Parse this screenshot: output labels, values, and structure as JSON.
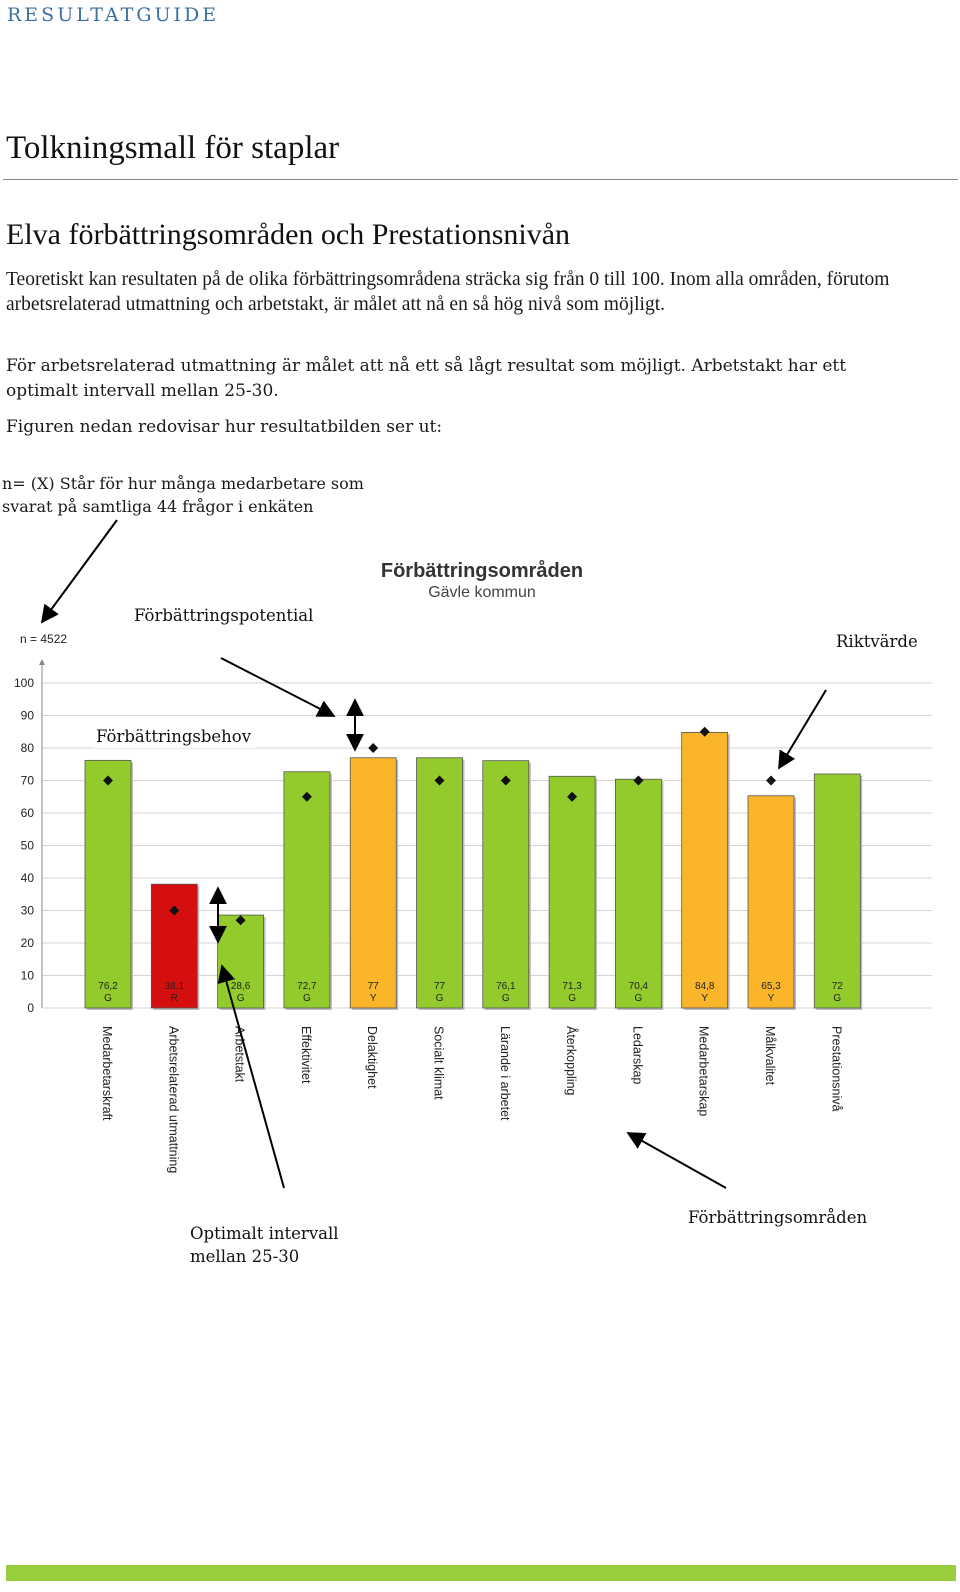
{
  "header": {
    "label": "RESULTATGUIDE"
  },
  "page_title": "Tolkningsmall för staplar",
  "section_heading": "Elva förbättringsområden och Prestationsnivån",
  "paragraphs": {
    "p1": "Teoretiskt kan resultaten på de olika förbättringsområdena sträcka sig från 0 till 100. Inom alla områden, förutom arbetsrelaterad utmattning och arbetstakt, är målet att nå en så hög nivå som möjligt.",
    "p2": "För arbetsrelaterad utmattning är målet att nå ett så lågt resultat som möjligt. Arbetstakt har ett optimalt intervall mellan 25-30.",
    "p3": "Figuren nedan redovisar hur resultatbilden ser ut:"
  },
  "annotations": {
    "n_note": "n= (X) Står för hur många medarbetare som svarat på samtliga 44 frågor i enkäten",
    "potential": "Förbättringspotential",
    "target": "Riktvärde",
    "need": "Förbättringsbehov",
    "optimal_line1": "Optimalt intervall",
    "optimal_line2": "mellan 25-30",
    "areas": "Förbättringsområden"
  },
  "chart_data": {
    "type": "bar",
    "title": "Förbättringsområden",
    "subtitle": "Gävle kommun",
    "n_label": "n = 4522",
    "ylim": [
      0,
      100
    ],
    "yticks": [
      0,
      10,
      20,
      30,
      40,
      50,
      60,
      70,
      80,
      90,
      100
    ],
    "categories": [
      "Medarbetarskraft",
      "Arbetsrelaterad utmattning",
      "Arbetstakt",
      "Effektivitet",
      "Delaktighet",
      "Socialt klimat",
      "Lärande i arbetet",
      "Återkoppling",
      "Ledarskap",
      "Medarbetarskap",
      "Målkvalitet",
      "Prestationsnivå"
    ],
    "values": [
      76.2,
      38.1,
      28.6,
      72.7,
      77,
      77,
      76.1,
      71.3,
      70.4,
      84.8,
      65.3,
      72
    ],
    "value_labels": [
      "76,2",
      "38,1",
      "28,6",
      "72,7",
      "77",
      "77",
      "76,1",
      "71,3",
      "70,4",
      "84,8",
      "65,3",
      "72"
    ],
    "status": [
      "G",
      "R",
      "G",
      "G",
      "Y",
      "G",
      "G",
      "G",
      "G",
      "Y",
      "Y",
      "G"
    ],
    "targets": [
      70,
      30,
      27,
      65,
      80,
      70,
      70,
      65,
      70,
      85,
      70,
      null
    ],
    "colors": {
      "G": "#93cb2c",
      "Y": "#fbb52b",
      "R": "#d50f0f"
    }
  },
  "colors": {
    "footer": "#9acd3e",
    "header": "#3a6fa0"
  }
}
